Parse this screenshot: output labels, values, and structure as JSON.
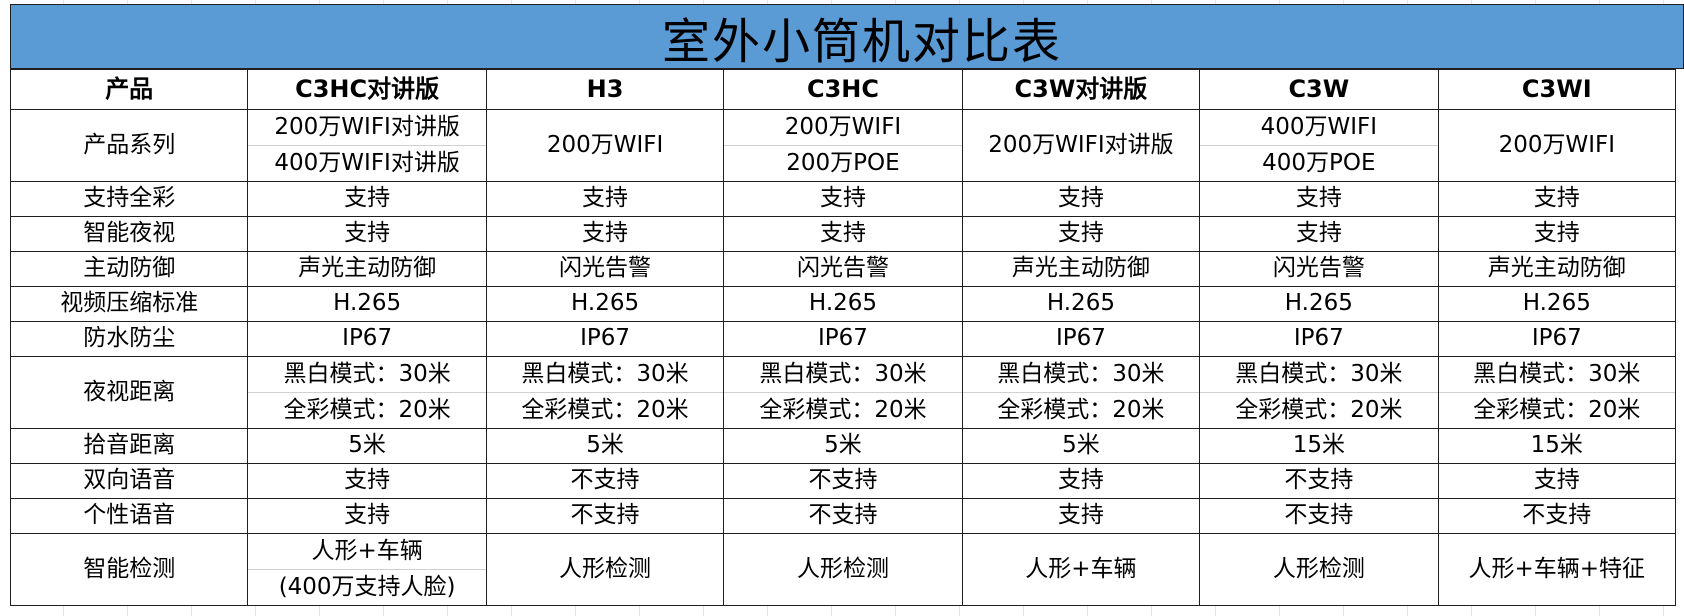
{
  "title": "室外小筒机对比表",
  "header": [
    "产品",
    "C3HC对讲版",
    "H3",
    "C3HC",
    "C3W对讲版",
    "C3W",
    "C3WI"
  ],
  "rows": [
    {
      "label": "产品系列",
      "cells": [
        [
          "200万WIFI对讲版",
          "400万WIFI对讲版"
        ],
        [
          "200万WIFI"
        ],
        [
          "200万WIFI",
          "200万POE"
        ],
        [
          "200万WIFI对讲版"
        ],
        [
          "400万WIFI",
          "400万POE"
        ],
        [
          "200万WIFI"
        ]
      ]
    },
    {
      "label": "支持全彩",
      "cells": [
        [
          "支持"
        ],
        [
          "支持"
        ],
        [
          "支持"
        ],
        [
          "支持"
        ],
        [
          "支持"
        ],
        [
          "支持"
        ]
      ]
    },
    {
      "label": "智能夜视",
      "cells": [
        [
          "支持"
        ],
        [
          "支持"
        ],
        [
          "支持"
        ],
        [
          "支持"
        ],
        [
          "支持"
        ],
        [
          "支持"
        ]
      ]
    },
    {
      "label": "主动防御",
      "cells": [
        [
          "声光主动防御"
        ],
        [
          "闪光告警"
        ],
        [
          "闪光告警"
        ],
        [
          "声光主动防御"
        ],
        [
          "闪光告警"
        ],
        [
          "声光主动防御"
        ]
      ]
    },
    {
      "label": "视频压缩标准",
      "cells": [
        [
          "H.265"
        ],
        [
          "H.265"
        ],
        [
          "H.265"
        ],
        [
          "H.265"
        ],
        [
          "H.265"
        ],
        [
          "H.265"
        ]
      ]
    },
    {
      "label": "防水防尘",
      "cells": [
        [
          "IP67"
        ],
        [
          "IP67"
        ],
        [
          "IP67"
        ],
        [
          "IP67"
        ],
        [
          "IP67"
        ],
        [
          "IP67"
        ]
      ]
    },
    {
      "label": "夜视距离",
      "cells": [
        [
          "黑白模式：30米",
          "全彩模式：20米"
        ],
        [
          "黑白模式：30米",
          "全彩模式：20米"
        ],
        [
          "黑白模式：30米",
          "全彩模式：20米"
        ],
        [
          "黑白模式：30米",
          "全彩模式：20米"
        ],
        [
          "黑白模式：30米",
          "全彩模式：20米"
        ],
        [
          "黑白模式：30米",
          "全彩模式：20米"
        ]
      ]
    },
    {
      "label": "拾音距离",
      "cells": [
        [
          "5米"
        ],
        [
          "5米"
        ],
        [
          "5米"
        ],
        [
          "5米"
        ],
        [
          "15米"
        ],
        [
          "15米"
        ]
      ]
    },
    {
      "label": "双向语音",
      "cells": [
        [
          "支持"
        ],
        [
          "不支持"
        ],
        [
          "不支持"
        ],
        [
          "支持"
        ],
        [
          "不支持"
        ],
        [
          "支持"
        ]
      ]
    },
    {
      "label": "个性语音",
      "cells": [
        [
          "支持"
        ],
        [
          "不支持"
        ],
        [
          "不支持"
        ],
        [
          "支持"
        ],
        [
          "不支持"
        ],
        [
          "不支持"
        ]
      ]
    },
    {
      "label": "智能检测",
      "cells": [
        [
          "人形+车辆",
          "(400万支持人脸)"
        ],
        [
          "人形检测"
        ],
        [
          "人形检测"
        ],
        [
          "人形+车辆"
        ],
        [
          "人形检测"
        ],
        [
          "人形+车辆+特征"
        ]
      ]
    }
  ],
  "colors": {
    "title_bg": "#5b9bd5",
    "border": "#1f1f1f"
  }
}
